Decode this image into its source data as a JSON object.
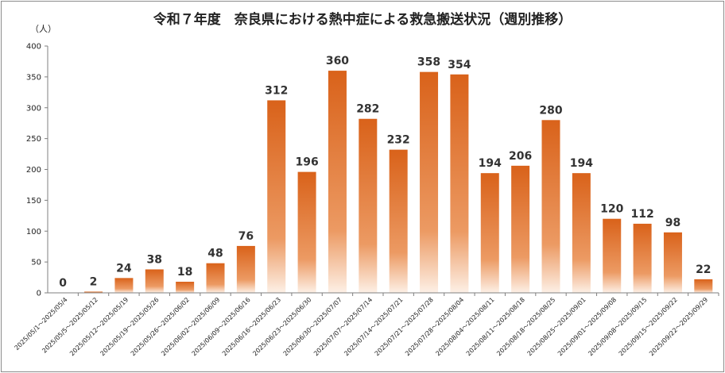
{
  "chart_data": {
    "type": "bar",
    "title": "令和７年度　奈良県における熱中症による救急搬送状況（週別推移）",
    "ylabel": "（人）",
    "xlabel": "",
    "ylim": [
      0,
      400
    ],
    "yticks": [
      0,
      50,
      100,
      150,
      200,
      250,
      300,
      350,
      400
    ],
    "grid": false,
    "bar_color": "#d9621a",
    "categories": [
      "2025/05/1～2025/05/4",
      "2025/05/5～2025/05/12",
      "2025/05/12～2025/05/19",
      "2025/05/19～2025/05/26",
      "2025/05/26～2025/06/02",
      "2025/06/02～2025/06/09",
      "2025/06/09～2025/06/16",
      "2025/06/16～2025/06/23",
      "2025/06/23～2025/06/30",
      "2025/06/30～2025/07/07",
      "2025/07/07～2025/07/14",
      "2025/07/14～2025/07/21",
      "2025/07/21～2025/07/28",
      "2025/07/28～2025/08/04",
      "2025/08/04～2025/08/11",
      "2025/08/11～2025/08/18",
      "2025/08/18～2025/08/25",
      "2025/08/25～2025/09/01",
      "2025/09/01～2025/09/08",
      "2025/09/08～2025/09/15",
      "2025/09/15～2025/09/22",
      "2025/09/22～2025/09/29"
    ],
    "values": [
      0,
      2,
      24,
      38,
      18,
      48,
      76,
      312,
      196,
      360,
      282,
      232,
      358,
      354,
      194,
      206,
      280,
      194,
      120,
      112,
      98,
      22
    ]
  }
}
